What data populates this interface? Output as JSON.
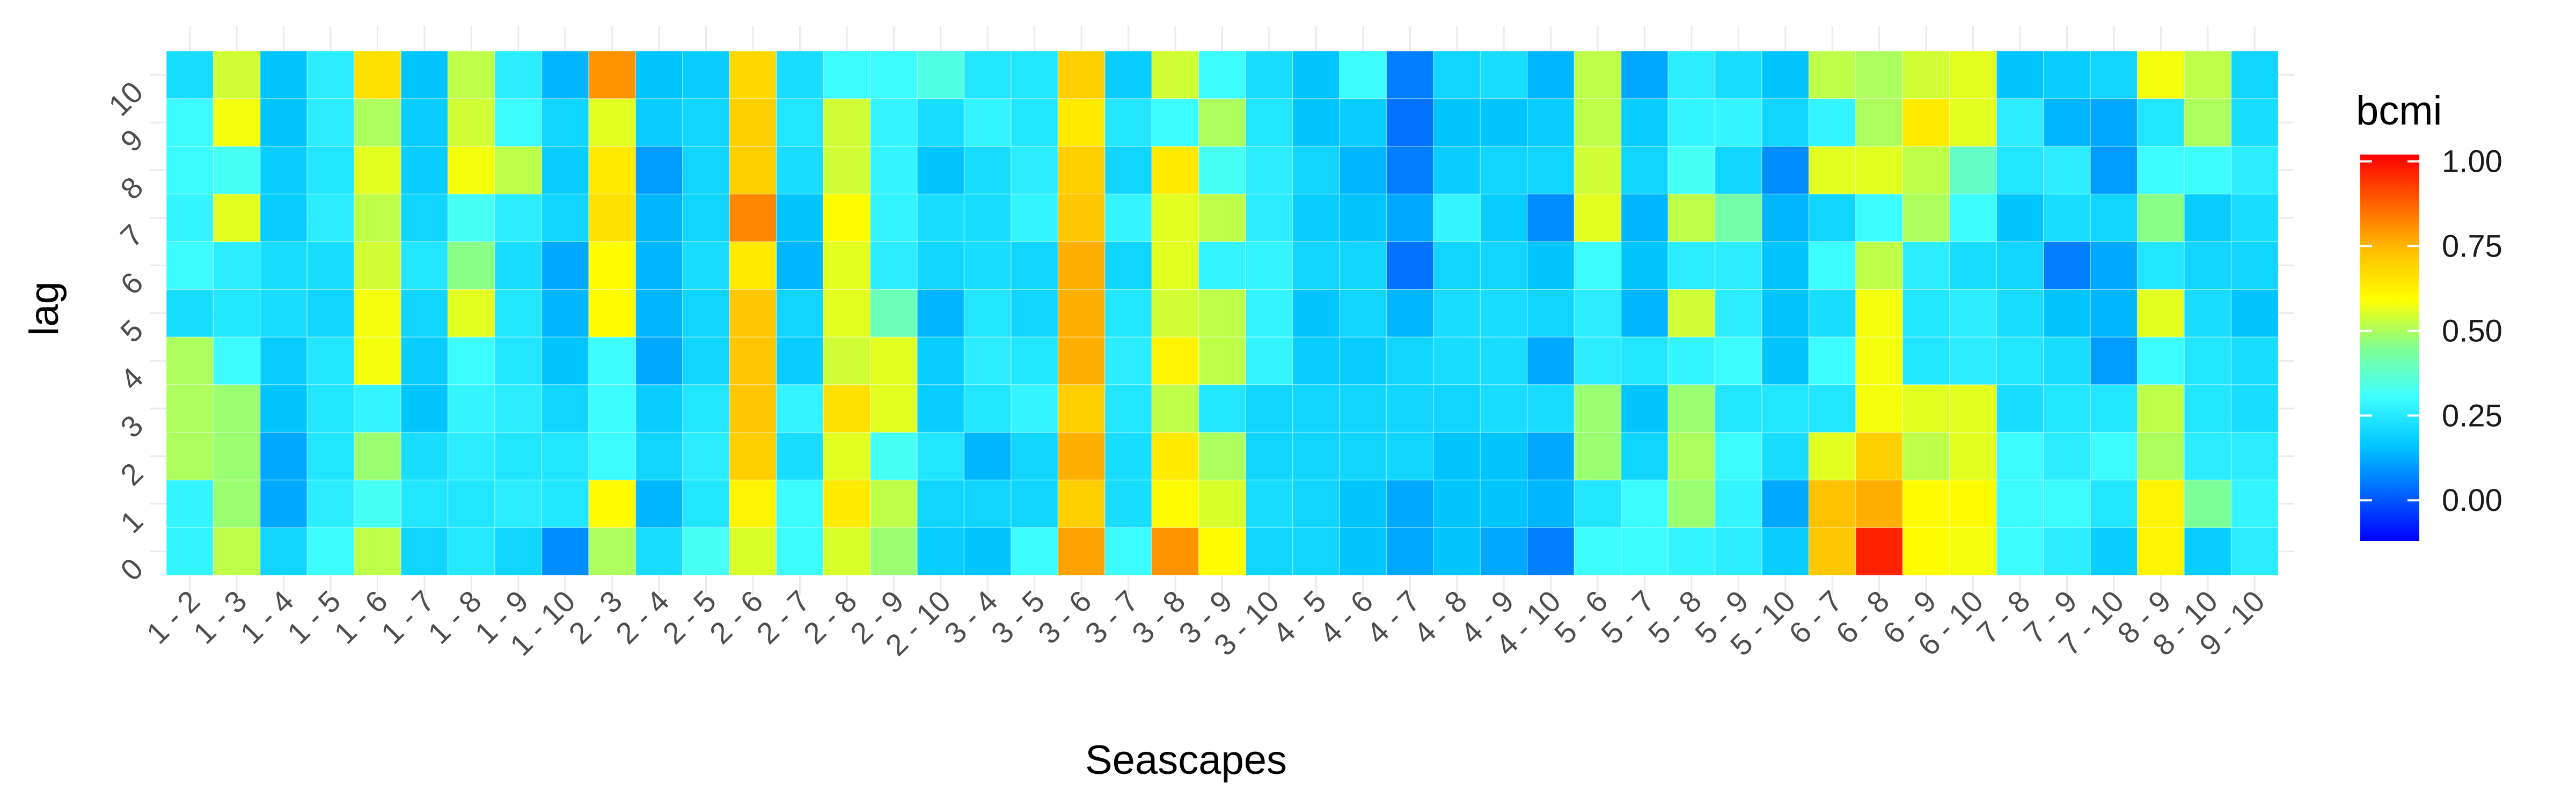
{
  "chart_data": {
    "type": "heatmap",
    "xlabel": "Seascapes",
    "ylabel": "lag",
    "legend": {
      "title": "bcmi",
      "position": "right",
      "ticks": [
        1.0,
        0.75,
        0.5,
        0.25,
        0.0
      ],
      "tick_labels": [
        "1.00",
        "0.75",
        "0.50",
        "0.25",
        "0.00"
      ],
      "range": [
        -0.12,
        1.02
      ],
      "colorscale": [
        "#0000ff",
        "#0066ff",
        "#00c8ff",
        "#40ffff",
        "#80ff90",
        "#ffff00",
        "#ffc000",
        "#ff6000",
        "#ff0000"
      ]
    },
    "x_categories": [
      "1 - 2",
      "1 - 3",
      "1 - 4",
      "1 - 5",
      "1 - 6",
      "1 - 7",
      "1 - 8",
      "1 - 9",
      "1 - 10",
      "2 - 3",
      "2 - 4",
      "2 - 5",
      "2 - 6",
      "2 - 7",
      "2 - 8",
      "2 - 9",
      "2 - 10",
      "3 - 4",
      "3 - 5",
      "3 - 6",
      "3 - 7",
      "3 - 8",
      "3 - 9",
      "3 - 10",
      "4 - 5",
      "4 - 6",
      "4 - 7",
      "4 - 8",
      "4 - 9",
      "4 - 10",
      "5 - 6",
      "5 - 7",
      "5 - 8",
      "5 - 9",
      "5 - 10",
      "6 - 7",
      "6 - 8",
      "6 - 9",
      "6 - 10",
      "7 - 8",
      "7 - 9",
      "7 - 10",
      "8 - 9",
      "8 - 10",
      "9 - 10"
    ],
    "y_categories": [
      "0",
      "1",
      "2",
      "3",
      "4",
      "5",
      "6",
      "7",
      "8",
      "9",
      "10"
    ],
    "values": [
      [
        0.28,
        0.52,
        0.2,
        0.3,
        0.52,
        0.2,
        0.25,
        0.2,
        0.08,
        0.5,
        0.22,
        0.32,
        0.55,
        0.3,
        0.55,
        0.48,
        0.18,
        0.16,
        0.3,
        0.78,
        0.3,
        0.8,
        0.6,
        0.2,
        0.2,
        0.16,
        0.12,
        0.16,
        0.12,
        0.06,
        0.3,
        0.3,
        0.28,
        0.26,
        0.18,
        0.72,
        0.97,
        0.6,
        0.58,
        0.3,
        0.26,
        0.18,
        0.62,
        0.18,
        0.26
      ],
      [
        0.28,
        0.48,
        0.12,
        0.26,
        0.32,
        0.24,
        0.24,
        0.26,
        0.24,
        0.6,
        0.14,
        0.24,
        0.62,
        0.3,
        0.64,
        0.52,
        0.2,
        0.2,
        0.2,
        0.7,
        0.22,
        0.6,
        0.55,
        0.22,
        0.2,
        0.16,
        0.12,
        0.16,
        0.16,
        0.14,
        0.24,
        0.3,
        0.48,
        0.28,
        0.12,
        0.73,
        0.76,
        0.6,
        0.6,
        0.3,
        0.3,
        0.24,
        0.62,
        0.44,
        0.28
      ],
      [
        0.5,
        0.48,
        0.12,
        0.24,
        0.48,
        0.22,
        0.26,
        0.24,
        0.24,
        0.3,
        0.2,
        0.26,
        0.7,
        0.22,
        0.56,
        0.32,
        0.24,
        0.14,
        0.2,
        0.76,
        0.22,
        0.64,
        0.5,
        0.2,
        0.2,
        0.2,
        0.2,
        0.16,
        0.16,
        0.12,
        0.48,
        0.2,
        0.5,
        0.3,
        0.22,
        0.56,
        0.7,
        0.52,
        0.56,
        0.3,
        0.26,
        0.3,
        0.5,
        0.26,
        0.26
      ],
      [
        0.5,
        0.48,
        0.16,
        0.24,
        0.28,
        0.16,
        0.28,
        0.26,
        0.2,
        0.3,
        0.18,
        0.24,
        0.72,
        0.28,
        0.66,
        0.56,
        0.18,
        0.24,
        0.28,
        0.7,
        0.24,
        0.52,
        0.24,
        0.2,
        0.2,
        0.2,
        0.2,
        0.2,
        0.22,
        0.22,
        0.48,
        0.16,
        0.48,
        0.24,
        0.24,
        0.24,
        0.58,
        0.56,
        0.56,
        0.22,
        0.24,
        0.24,
        0.52,
        0.24,
        0.22
      ],
      [
        0.5,
        0.3,
        0.18,
        0.24,
        0.58,
        0.18,
        0.3,
        0.24,
        0.16,
        0.3,
        0.12,
        0.2,
        0.72,
        0.18,
        0.54,
        0.56,
        0.18,
        0.26,
        0.24,
        0.76,
        0.26,
        0.62,
        0.52,
        0.28,
        0.18,
        0.18,
        0.2,
        0.22,
        0.22,
        0.12,
        0.26,
        0.24,
        0.28,
        0.3,
        0.16,
        0.3,
        0.58,
        0.24,
        0.26,
        0.24,
        0.22,
        0.1,
        0.3,
        0.24,
        0.22
      ],
      [
        0.22,
        0.24,
        0.22,
        0.2,
        0.58,
        0.2,
        0.56,
        0.24,
        0.14,
        0.6,
        0.14,
        0.2,
        0.72,
        0.2,
        0.56,
        0.4,
        0.14,
        0.24,
        0.2,
        0.76,
        0.24,
        0.54,
        0.52,
        0.28,
        0.16,
        0.2,
        0.14,
        0.22,
        0.22,
        0.2,
        0.26,
        0.14,
        0.54,
        0.26,
        0.16,
        0.22,
        0.58,
        0.24,
        0.26,
        0.22,
        0.16,
        0.14,
        0.56,
        0.22,
        0.16
      ],
      [
        0.3,
        0.26,
        0.22,
        0.22,
        0.54,
        0.24,
        0.46,
        0.22,
        0.12,
        0.6,
        0.14,
        0.22,
        0.64,
        0.14,
        0.56,
        0.26,
        0.2,
        0.22,
        0.2,
        0.76,
        0.2,
        0.56,
        0.28,
        0.28,
        0.2,
        0.2,
        0.04,
        0.2,
        0.2,
        0.16,
        0.3,
        0.16,
        0.26,
        0.26,
        0.16,
        0.3,
        0.52,
        0.26,
        0.22,
        0.2,
        0.06,
        0.12,
        0.24,
        0.2,
        0.2
      ],
      [
        0.28,
        0.56,
        0.18,
        0.26,
        0.52,
        0.2,
        0.32,
        0.26,
        0.2,
        0.66,
        0.14,
        0.2,
        0.82,
        0.16,
        0.6,
        0.28,
        0.22,
        0.22,
        0.28,
        0.72,
        0.28,
        0.56,
        0.52,
        0.26,
        0.18,
        0.16,
        0.12,
        0.28,
        0.18,
        0.08,
        0.56,
        0.14,
        0.52,
        0.42,
        0.14,
        0.2,
        0.3,
        0.5,
        0.3,
        0.16,
        0.22,
        0.2,
        0.46,
        0.18,
        0.22
      ],
      [
        0.3,
        0.32,
        0.18,
        0.24,
        0.56,
        0.18,
        0.58,
        0.52,
        0.18,
        0.64,
        0.1,
        0.2,
        0.7,
        0.22,
        0.54,
        0.28,
        0.16,
        0.22,
        0.26,
        0.7,
        0.2,
        0.64,
        0.32,
        0.26,
        0.2,
        0.14,
        0.06,
        0.18,
        0.2,
        0.2,
        0.54,
        0.2,
        0.32,
        0.2,
        0.08,
        0.56,
        0.56,
        0.52,
        0.38,
        0.24,
        0.26,
        0.1,
        0.3,
        0.3,
        0.26
      ],
      [
        0.3,
        0.58,
        0.16,
        0.26,
        0.5,
        0.18,
        0.54,
        0.3,
        0.2,
        0.56,
        0.18,
        0.2,
        0.7,
        0.24,
        0.54,
        0.28,
        0.22,
        0.28,
        0.24,
        0.64,
        0.24,
        0.3,
        0.5,
        0.24,
        0.16,
        0.18,
        0.04,
        0.16,
        0.16,
        0.18,
        0.52,
        0.18,
        0.28,
        0.28,
        0.2,
        0.28,
        0.5,
        0.64,
        0.56,
        0.26,
        0.14,
        0.12,
        0.24,
        0.5,
        0.22
      ],
      [
        0.22,
        0.54,
        0.16,
        0.26,
        0.66,
        0.16,
        0.52,
        0.26,
        0.14,
        0.8,
        0.16,
        0.18,
        0.68,
        0.22,
        0.3,
        0.3,
        0.34,
        0.24,
        0.24,
        0.7,
        0.18,
        0.54,
        0.3,
        0.22,
        0.16,
        0.3,
        0.06,
        0.2,
        0.22,
        0.14,
        0.52,
        0.12,
        0.26,
        0.22,
        0.16,
        0.52,
        0.5,
        0.54,
        0.56,
        0.16,
        0.18,
        0.2,
        0.58,
        0.52,
        0.2
      ]
    ]
  }
}
